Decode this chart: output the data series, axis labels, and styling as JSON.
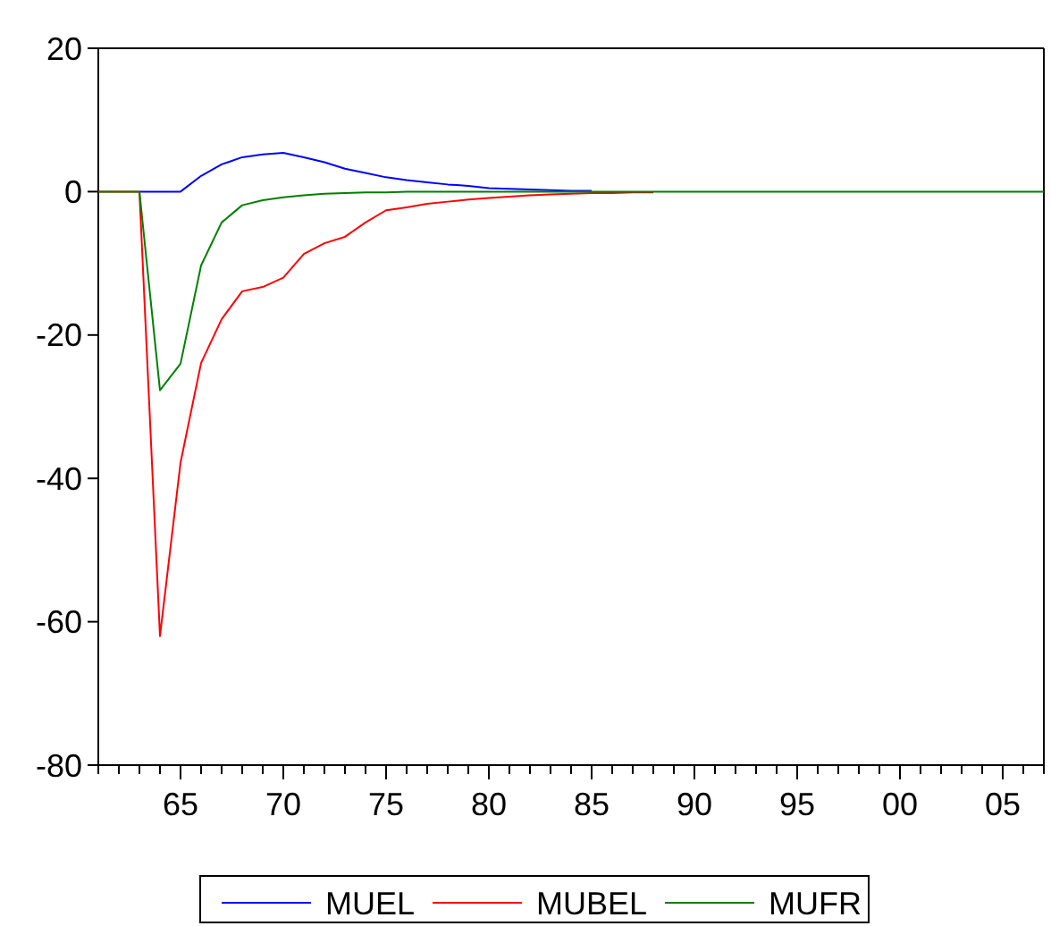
{
  "chart_data": {
    "type": "line",
    "x": [
      1961,
      1962,
      1963,
      1964,
      1965,
      1966,
      1967,
      1968,
      1969,
      1970,
      1971,
      1972,
      1973,
      1974,
      1975,
      1976,
      1977,
      1978,
      1979,
      1980,
      1981,
      1982,
      1983,
      1984,
      1985,
      1986,
      1987,
      1988,
      1989,
      1990,
      1991,
      1992,
      1993,
      1994,
      1995,
      1996,
      1997,
      1998,
      1999,
      2000,
      2001,
      2002,
      2003,
      2004,
      2005,
      2006,
      2007
    ],
    "series": [
      {
        "name": "MUEL",
        "color": "#0000ff",
        "values": [
          null,
          null,
          0,
          0,
          0,
          2.2,
          3.8,
          4.8,
          5.2,
          5.4,
          4.8,
          4.1,
          3.2,
          2.6,
          2.0,
          1.6,
          1.3,
          1.0,
          0.8,
          0.5,
          0.4,
          0.3,
          0.2,
          0.1,
          0.1,
          null,
          null,
          null,
          null,
          null,
          null,
          null,
          null,
          null,
          null,
          null,
          null,
          null,
          null,
          null,
          null,
          null,
          null,
          null,
          null,
          null,
          null
        ]
      },
      {
        "name": "MUBEL",
        "color": "#ff0000",
        "values": [
          0,
          0,
          0,
          -62,
          -37.8,
          -23.9,
          -17.8,
          -13.9,
          -13.3,
          -12,
          -8.7,
          -7.2,
          -6.3,
          -4.3,
          -2.6,
          -2.2,
          -1.7,
          -1.4,
          -1.1,
          -0.9,
          -0.7,
          -0.5,
          -0.4,
          -0.3,
          -0.2,
          -0.2,
          -0.1,
          -0.1,
          null,
          null,
          null,
          null,
          null,
          null,
          null,
          null,
          null,
          null,
          null,
          null,
          null,
          null,
          null,
          null,
          null,
          null,
          null
        ]
      },
      {
        "name": "MUFR",
        "color": "#008000",
        "values": [
          0,
          0,
          0,
          -27.7,
          -24,
          -10.3,
          -4.3,
          -1.9,
          -1.2,
          -0.8,
          -0.5,
          -0.3,
          -0.2,
          -0.1,
          -0.1,
          0,
          0,
          0,
          0,
          0,
          0,
          0,
          0,
          0,
          0,
          0,
          0,
          0,
          0,
          0,
          0,
          0,
          0,
          0,
          0,
          0,
          0,
          0,
          0,
          0,
          0,
          0,
          0,
          0,
          0,
          0,
          0
        ]
      }
    ],
    "xlim": [
      1961,
      2007
    ],
    "xticks": [
      {
        "value": 1961,
        "label": null
      },
      {
        "value": 1962,
        "label": null
      },
      {
        "value": 1963,
        "label": null
      },
      {
        "value": 1964,
        "label": null
      },
      {
        "value": 1965,
        "label": "65"
      },
      {
        "value": 1966,
        "label": null
      },
      {
        "value": 1967,
        "label": null
      },
      {
        "value": 1968,
        "label": null
      },
      {
        "value": 1969,
        "label": null
      },
      {
        "value": 1970,
        "label": "70"
      },
      {
        "value": 1971,
        "label": null
      },
      {
        "value": 1972,
        "label": null
      },
      {
        "value": 1973,
        "label": null
      },
      {
        "value": 1974,
        "label": null
      },
      {
        "value": 1975,
        "label": "75"
      },
      {
        "value": 1976,
        "label": null
      },
      {
        "value": 1977,
        "label": null
      },
      {
        "value": 1978,
        "label": null
      },
      {
        "value": 1979,
        "label": null
      },
      {
        "value": 1980,
        "label": "80"
      },
      {
        "value": 1981,
        "label": null
      },
      {
        "value": 1982,
        "label": null
      },
      {
        "value": 1983,
        "label": null
      },
      {
        "value": 1984,
        "label": null
      },
      {
        "value": 1985,
        "label": "85"
      },
      {
        "value": 1986,
        "label": null
      },
      {
        "value": 1987,
        "label": null
      },
      {
        "value": 1988,
        "label": null
      },
      {
        "value": 1989,
        "label": null
      },
      {
        "value": 1990,
        "label": "90"
      },
      {
        "value": 1991,
        "label": null
      },
      {
        "value": 1992,
        "label": null
      },
      {
        "value": 1993,
        "label": null
      },
      {
        "value": 1994,
        "label": null
      },
      {
        "value": 1995,
        "label": "95"
      },
      {
        "value": 1996,
        "label": null
      },
      {
        "value": 1997,
        "label": null
      },
      {
        "value": 1998,
        "label": null
      },
      {
        "value": 1999,
        "label": null
      },
      {
        "value": 2000,
        "label": "00"
      },
      {
        "value": 2001,
        "label": null
      },
      {
        "value": 2002,
        "label": null
      },
      {
        "value": 2003,
        "label": null
      },
      {
        "value": 2004,
        "label": null
      },
      {
        "value": 2005,
        "label": "05"
      },
      {
        "value": 2006,
        "label": null
      },
      {
        "value": 2007,
        "label": null
      }
    ],
    "ylim": [
      -80,
      20
    ],
    "yticks": [
      -80,
      -60,
      -40,
      -20,
      0,
      20
    ],
    "legend": "bottom",
    "grid": false,
    "marker": "none",
    "line_style": "solid"
  }
}
